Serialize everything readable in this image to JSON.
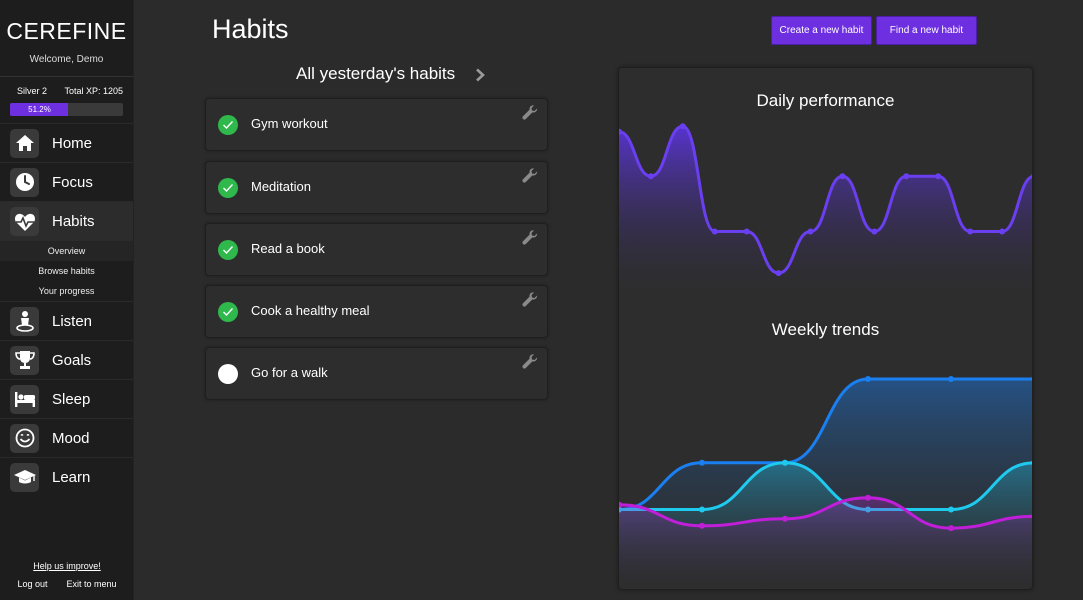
{
  "sidebar": {
    "brand": "CEREFINE",
    "welcome": "Welcome, Demo",
    "rank": "Silver 2",
    "total_xp": "Total XP: 1205",
    "progress_label": "51.2%",
    "progress_value": 0.512,
    "nav": [
      {
        "label": "Home",
        "icon": "home-icon"
      },
      {
        "label": "Focus",
        "icon": "clock-icon"
      },
      {
        "label": "Habits",
        "icon": "heartbeat-icon"
      },
      {
        "label": "Listen",
        "icon": "meditation-icon"
      },
      {
        "label": "Goals",
        "icon": "trophy-icon"
      },
      {
        "label": "Sleep",
        "icon": "bed-icon"
      },
      {
        "label": "Mood",
        "icon": "smile-icon"
      },
      {
        "label": "Learn",
        "icon": "graduation-cap-icon"
      }
    ],
    "subnav": [
      "Overview",
      "Browse habits",
      "Your progress"
    ],
    "help": "Help us improve!",
    "logout": "Log out",
    "exit": "Exit to menu"
  },
  "header": {
    "title": "Habits",
    "create_button": "Create a new habit",
    "find_button": "Find a new habit"
  },
  "habits_list": {
    "title": "All yesterday's habits",
    "items": [
      {
        "name": "Gym workout",
        "done": true
      },
      {
        "name": "Meditation",
        "done": true
      },
      {
        "name": "Read a book",
        "done": true
      },
      {
        "name": "Cook a healthy meal",
        "done": true
      },
      {
        "name": "Go for a walk",
        "done": false
      }
    ]
  },
  "colors": {
    "accent": "#6d2fe0",
    "check_done": "#2fb84c",
    "daily_line": "#6a3ff0",
    "weekly_blue": "#1a7ff0",
    "weekly_cyan": "#1ecbef",
    "weekly_magenta": "#c01ed8"
  },
  "chart_data": [
    {
      "type": "area",
      "title": "Daily performance",
      "x": [
        0,
        1,
        2,
        3,
        4,
        5,
        6,
        7,
        8,
        9,
        10,
        11,
        12,
        13
      ],
      "series": [
        {
          "values": [
            90,
            58,
            94,
            18,
            18,
            -12,
            18,
            58,
            18,
            58,
            58,
            18,
            18,
            58
          ]
        }
      ],
      "ylim": [
        -30,
        100
      ],
      "grid": false
    },
    {
      "type": "area",
      "title": "Weekly trends",
      "x": [
        0,
        1,
        2,
        3,
        4,
        5
      ],
      "series": [
        {
          "values": [
            35,
            55,
            55,
            91,
            91,
            91
          ]
        },
        {
          "values": [
            35,
            35,
            55,
            35,
            35,
            55
          ]
        },
        {
          "values": [
            37,
            28,
            31,
            40,
            27,
            32
          ]
        }
      ],
      "ylim": [
        0,
        100
      ],
      "grid": false
    }
  ]
}
